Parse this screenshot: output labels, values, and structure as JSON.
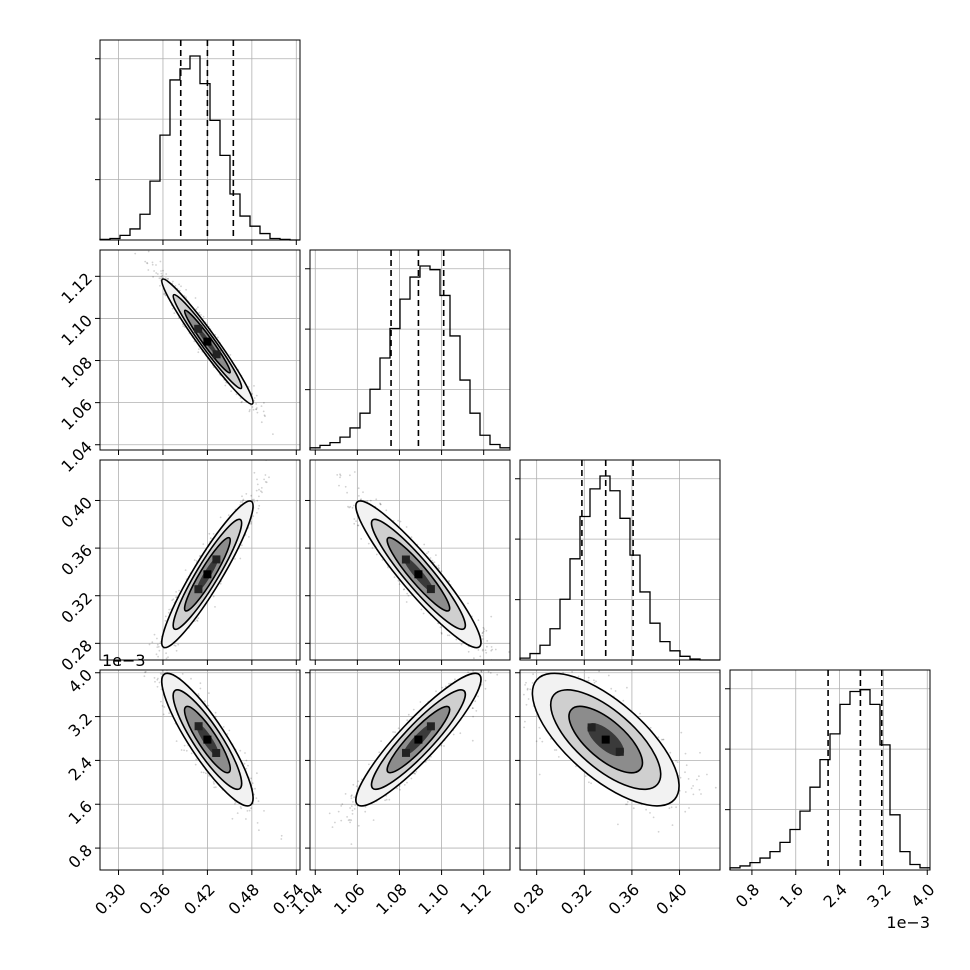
{
  "chart_data": {
    "type": "corner",
    "parameters": [
      {
        "range": [
          0.275,
          0.545
        ],
        "ticks": [
          0.3,
          0.36,
          0.42,
          0.48,
          0.54
        ],
        "tick_labels": [
          "0.30",
          "0.36",
          "0.42",
          "0.48",
          "0.54"
        ],
        "quantiles": [
          0.384,
          0.42,
          0.455
        ],
        "exponent_label": ""
      },
      {
        "range": [
          1.0375,
          1.1325
        ],
        "ticks": [
          1.04,
          1.06,
          1.08,
          1.1,
          1.12
        ],
        "tick_labels": [
          "1.04",
          "1.06",
          "1.08",
          "1.10",
          "1.12"
        ],
        "quantiles": [
          1.076,
          1.089,
          1.101
        ],
        "exponent_label": ""
      },
      {
        "range": [
          0.266,
          0.434
        ],
        "ticks": [
          0.28,
          0.32,
          0.36,
          0.4
        ],
        "tick_labels": [
          "0.28",
          "0.32",
          "0.36",
          "0.40"
        ],
        "quantiles": [
          0.318,
          0.338,
          0.361
        ],
        "exponent_label": ""
      },
      {
        "range": [
          0.4,
          4.05
        ],
        "ticks": [
          0.8,
          1.6,
          2.4,
          3.2,
          4.0
        ],
        "tick_labels": [
          "0.8",
          "1.6",
          "2.4",
          "3.2",
          "4.0"
        ],
        "quantiles": [
          2.19,
          2.78,
          3.17
        ],
        "exponent_label": "1e−3"
      }
    ],
    "histograms": [
      [
        0.003,
        0.008,
        0.025,
        0.06,
        0.14,
        0.32,
        0.57,
        0.87,
        0.93,
        1.0,
        0.85,
        0.65,
        0.46,
        0.25,
        0.13,
        0.075,
        0.035,
        0.008,
        0.003,
        0.0
      ],
      [
        0.012,
        0.025,
        0.04,
        0.07,
        0.12,
        0.2,
        0.33,
        0.5,
        0.66,
        0.82,
        0.94,
        1.0,
        0.98,
        0.84,
        0.62,
        0.38,
        0.2,
        0.08,
        0.03,
        0.012
      ],
      [
        0.01,
        0.035,
        0.08,
        0.17,
        0.33,
        0.55,
        0.78,
        0.93,
        1.0,
        0.92,
        0.77,
        0.57,
        0.37,
        0.2,
        0.1,
        0.05,
        0.02,
        0.005,
        0.0,
        0.0
      ],
      [
        0.012,
        0.022,
        0.04,
        0.065,
        0.1,
        0.15,
        0.22,
        0.32,
        0.45,
        0.6,
        0.74,
        0.9,
        0.97,
        0.98,
        0.9,
        0.68,
        0.3,
        0.1,
        0.03,
        0.012
      ]
    ],
    "pairs": [
      {
        "row": 1,
        "col": 0,
        "mean": [
          0.42,
          1.089
        ],
        "corr": -0.97
      },
      {
        "row": 2,
        "col": 0,
        "mean": [
          0.42,
          0.338
        ],
        "corr": 0.93
      },
      {
        "row": 2,
        "col": 1,
        "mean": [
          1.089,
          0.338
        ],
        "corr": -0.93
      },
      {
        "row": 3,
        "col": 0,
        "mean": [
          0.42,
          2.78
        ],
        "corr": -0.88
      },
      {
        "row": 3,
        "col": 1,
        "mean": [
          1.089,
          2.78
        ],
        "corr": 0.91
      },
      {
        "row": 3,
        "col": 2,
        "mean": [
          0.338,
          2.78
        ],
        "corr": -0.7
      }
    ],
    "contour_levels": [
      0.5,
      1.0,
      1.5,
      2.0
    ],
    "grid": true,
    "quantile_line_style": "dashed"
  }
}
